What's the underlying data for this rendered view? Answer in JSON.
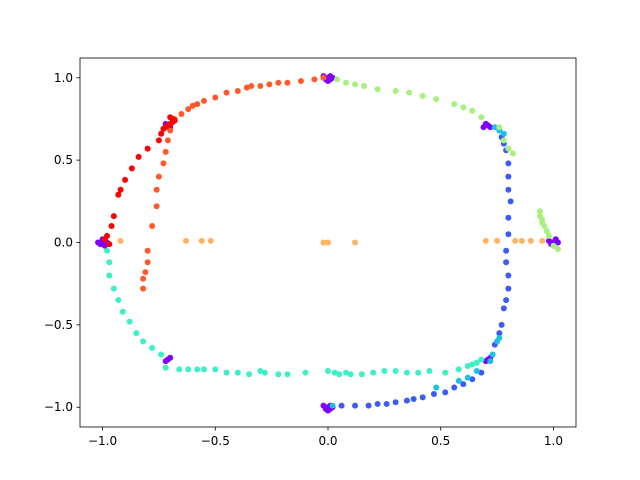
{
  "chart_data": {
    "type": "scatter",
    "title": "",
    "xlabel": "",
    "ylabel": "",
    "xlim": [
      -1.1,
      1.1
    ],
    "ylim": [
      -1.12,
      1.12
    ],
    "grid": false,
    "legend": "none",
    "x_ticks": [
      -1.0,
      -0.5,
      0.0,
      0.5,
      1.0
    ],
    "x_tick_labels": [
      "−1.0",
      "−0.5",
      "0.0",
      "0.5",
      "1.0"
    ],
    "y_ticks": [
      -1.0,
      -0.5,
      0.0,
      0.5,
      1.0
    ],
    "y_tick_labels": [
      "−1.0",
      "−0.5",
      "0.0",
      "0.5",
      "1.0"
    ],
    "series": [
      {
        "color": "#8000ff",
        "points": [
          [
            1.0,
            0.0
          ],
          [
            1.01,
            0.01
          ],
          [
            0.99,
            -0.01
          ],
          [
            1.02,
            0.0
          ],
          [
            0.98,
            0.01
          ],
          [
            1.0,
            -0.02
          ],
          [
            1.01,
            0.02
          ],
          [
            0.99,
            0.0
          ],
          [
            0.0,
            1.0
          ],
          [
            0.01,
            1.01
          ],
          [
            -0.01,
            0.99
          ],
          [
            0.0,
            0.98
          ],
          [
            0.02,
            1.0
          ],
          [
            -0.02,
            1.01
          ],
          [
            0.01,
            0.99
          ],
          [
            -1.0,
            0.0
          ],
          [
            -0.99,
            0.01
          ],
          [
            -1.01,
            -0.01
          ],
          [
            -0.98,
            0.0
          ],
          [
            -1.0,
            0.02
          ],
          [
            -1.02,
            0.0
          ],
          [
            -0.99,
            -0.02
          ],
          [
            0.0,
            -1.0
          ],
          [
            0.01,
            -0.99
          ],
          [
            -0.01,
            -1.01
          ],
          [
            0.02,
            -1.0
          ],
          [
            -0.02,
            -0.99
          ],
          [
            0.0,
            -1.02
          ],
          [
            0.01,
            -1.01
          ],
          [
            0.71,
            0.71
          ],
          [
            0.7,
            0.72
          ],
          [
            0.72,
            0.7
          ],
          [
            0.69,
            0.7
          ],
          [
            -0.71,
            0.71
          ],
          [
            -0.7,
            0.7
          ],
          [
            -0.72,
            0.72
          ],
          [
            -0.71,
            -0.71
          ],
          [
            -0.7,
            -0.7
          ],
          [
            -0.72,
            -0.72
          ],
          [
            0.71,
            -0.71
          ],
          [
            0.72,
            -0.7
          ],
          [
            0.7,
            -0.72
          ]
        ]
      },
      {
        "color": "#3c5cf5",
        "points": [
          [
            0.06,
            -0.99
          ],
          [
            0.12,
            -0.99
          ],
          [
            0.18,
            -0.99
          ],
          [
            0.22,
            -0.98
          ],
          [
            0.26,
            -0.98
          ],
          [
            0.3,
            -0.97
          ],
          [
            0.35,
            -0.96
          ],
          [
            0.38,
            -0.95
          ],
          [
            0.42,
            -0.94
          ],
          [
            0.47,
            -0.92
          ],
          [
            0.52,
            -0.91
          ],
          [
            0.56,
            -0.88
          ],
          [
            0.6,
            -0.86
          ],
          [
            0.64,
            -0.83
          ],
          [
            0.68,
            -0.79
          ],
          [
            0.74,
            -0.62
          ],
          [
            0.76,
            -0.55
          ],
          [
            0.77,
            -0.5
          ],
          [
            0.78,
            -0.4
          ],
          [
            0.79,
            -0.35
          ],
          [
            0.8,
            -0.28
          ],
          [
            0.8,
            -0.2
          ],
          [
            0.79,
            -0.12
          ],
          [
            0.79,
            -0.05
          ],
          [
            0.8,
            0.05
          ],
          [
            0.8,
            0.15
          ],
          [
            0.81,
            0.25
          ],
          [
            0.8,
            0.32
          ],
          [
            0.8,
            0.4
          ],
          [
            0.8,
            0.48
          ],
          [
            0.79,
            0.56
          ],
          [
            0.78,
            0.6
          ],
          [
            0.77,
            0.64
          ]
        ]
      },
      {
        "color": "#19c0e8",
        "points": [
          [
            0.74,
            0.7
          ],
          [
            0.76,
            0.68
          ],
          [
            0.78,
            0.66
          ],
          [
            0.73,
            -0.68
          ],
          [
            0.72,
            -0.72
          ],
          [
            0.66,
            -0.78
          ],
          [
            0.62,
            -0.82
          ],
          [
            0.58,
            -0.84
          ],
          [
            0.48,
            -0.88
          ],
          [
            0.02,
            -0.99
          ],
          [
            0.76,
            -0.58
          ],
          [
            0.75,
            -0.6
          ]
        ]
      },
      {
        "color": "#3cf0c8",
        "points": [
          [
            -0.98,
            -0.05
          ],
          [
            -0.97,
            -0.12
          ],
          [
            -0.97,
            -0.2
          ],
          [
            -0.95,
            -0.28
          ],
          [
            -0.93,
            -0.35
          ],
          [
            -0.91,
            -0.42
          ],
          [
            -0.88,
            -0.48
          ],
          [
            -0.85,
            -0.55
          ],
          [
            -0.82,
            -0.6
          ],
          [
            -0.78,
            -0.64
          ],
          [
            -0.74,
            -0.68
          ],
          [
            -0.72,
            -0.76
          ],
          [
            -0.66,
            -0.77
          ],
          [
            -0.62,
            -0.77
          ],
          [
            -0.58,
            -0.77
          ],
          [
            -0.55,
            -0.77
          ],
          [
            -0.5,
            -0.77
          ],
          [
            -0.45,
            -0.79
          ],
          [
            -0.4,
            -0.79
          ],
          [
            -0.35,
            -0.8
          ],
          [
            -0.3,
            -0.78
          ],
          [
            -0.28,
            -0.79
          ],
          [
            -0.22,
            -0.8
          ],
          [
            -0.18,
            -0.8
          ],
          [
            -0.1,
            -0.79
          ],
          [
            0.0,
            -0.78
          ],
          [
            0.03,
            -0.79
          ],
          [
            0.05,
            -0.8
          ],
          [
            0.08,
            -0.79
          ],
          [
            0.1,
            -0.8
          ],
          [
            0.15,
            -0.8
          ],
          [
            0.2,
            -0.79
          ],
          [
            0.25,
            -0.78
          ],
          [
            0.3,
            -0.78
          ],
          [
            0.35,
            -0.79
          ],
          [
            0.4,
            -0.79
          ],
          [
            0.45,
            -0.78
          ],
          [
            0.52,
            -0.79
          ],
          [
            0.58,
            -0.77
          ],
          [
            0.62,
            -0.75
          ],
          [
            0.64,
            -0.74
          ],
          [
            0.66,
            -0.73
          ],
          [
            0.68,
            -0.71
          ]
        ]
      },
      {
        "color": "#a8f080",
        "points": [
          [
            0.04,
            0.99
          ],
          [
            0.08,
            0.97
          ],
          [
            0.12,
            0.96
          ],
          [
            0.16,
            0.95
          ],
          [
            0.22,
            0.93
          ],
          [
            0.3,
            0.92
          ],
          [
            0.36,
            0.91
          ],
          [
            0.42,
            0.89
          ],
          [
            0.48,
            0.87
          ],
          [
            0.56,
            0.84
          ],
          [
            0.6,
            0.82
          ],
          [
            0.64,
            0.8
          ],
          [
            0.68,
            0.76
          ],
          [
            0.76,
            0.7
          ],
          [
            0.78,
            0.62
          ],
          [
            0.8,
            0.57
          ],
          [
            0.82,
            0.54
          ],
          [
            0.94,
            0.19
          ],
          [
            0.94,
            0.16
          ],
          [
            0.95,
            0.14
          ],
          [
            0.95,
            0.12
          ],
          [
            0.96,
            0.1
          ],
          [
            0.97,
            0.07
          ],
          [
            0.98,
            0.04
          ],
          [
            1.0,
            -0.02
          ],
          [
            1.02,
            -0.04
          ]
        ]
      },
      {
        "color": "#ffb464",
        "points": [
          [
            -0.92,
            0.01
          ],
          [
            -0.63,
            0.01
          ],
          [
            -0.56,
            0.01
          ],
          [
            -0.52,
            0.01
          ],
          [
            -0.02,
            0.0
          ],
          [
            0.0,
            0.0
          ],
          [
            0.12,
            0.0
          ],
          [
            0.7,
            0.01
          ],
          [
            0.75,
            0.01
          ],
          [
            0.83,
            0.01
          ],
          [
            0.86,
            0.01
          ],
          [
            0.9,
            0.01
          ],
          [
            0.95,
            0.01
          ]
        ]
      },
      {
        "color": "#ff5a2a",
        "points": [
          [
            -0.02,
            1.0
          ],
          [
            -0.06,
            0.99
          ],
          [
            -0.12,
            0.98
          ],
          [
            -0.18,
            0.97
          ],
          [
            -0.22,
            0.97
          ],
          [
            -0.26,
            0.96
          ],
          [
            -0.3,
            0.95
          ],
          [
            -0.34,
            0.95
          ],
          [
            -0.36,
            0.94
          ],
          [
            -0.4,
            0.92
          ],
          [
            -0.45,
            0.91
          ],
          [
            -0.5,
            0.88
          ],
          [
            -0.55,
            0.86
          ],
          [
            -0.58,
            0.84
          ],
          [
            -0.6,
            0.83
          ],
          [
            -0.62,
            0.81
          ],
          [
            -0.65,
            0.78
          ],
          [
            -0.68,
            0.75
          ],
          [
            -0.7,
            0.68
          ],
          [
            -0.71,
            0.62
          ],
          [
            -0.72,
            0.55
          ],
          [
            -0.73,
            0.48
          ],
          [
            -0.75,
            0.4
          ],
          [
            -0.76,
            0.32
          ],
          [
            -0.76,
            0.22
          ],
          [
            -0.78,
            0.1
          ],
          [
            -0.8,
            -0.05
          ],
          [
            -0.8,
            -0.12
          ],
          [
            -0.81,
            -0.18
          ],
          [
            -0.82,
            -0.22
          ],
          [
            -0.82,
            -0.28
          ]
        ]
      },
      {
        "color": "#ff0000",
        "points": [
          [
            -0.68,
            0.74
          ],
          [
            -0.69,
            0.73
          ],
          [
            -0.7,
            0.72
          ],
          [
            -0.71,
            0.71
          ],
          [
            -0.72,
            0.7
          ],
          [
            -0.73,
            0.69
          ],
          [
            -0.74,
            0.66
          ],
          [
            -0.7,
            0.76
          ],
          [
            -0.69,
            0.75
          ],
          [
            -0.75,
            0.62
          ],
          [
            -0.8,
            0.57
          ],
          [
            -0.84,
            0.52
          ],
          [
            -0.87,
            0.45
          ],
          [
            -0.9,
            0.38
          ],
          [
            -0.92,
            0.32
          ],
          [
            -0.93,
            0.29
          ],
          [
            -0.95,
            0.16
          ],
          [
            -0.96,
            0.1
          ],
          [
            -0.98,
            0.04
          ],
          [
            -0.99,
            0.02
          ],
          [
            -0.97,
            -0.01
          ]
        ]
      }
    ]
  }
}
